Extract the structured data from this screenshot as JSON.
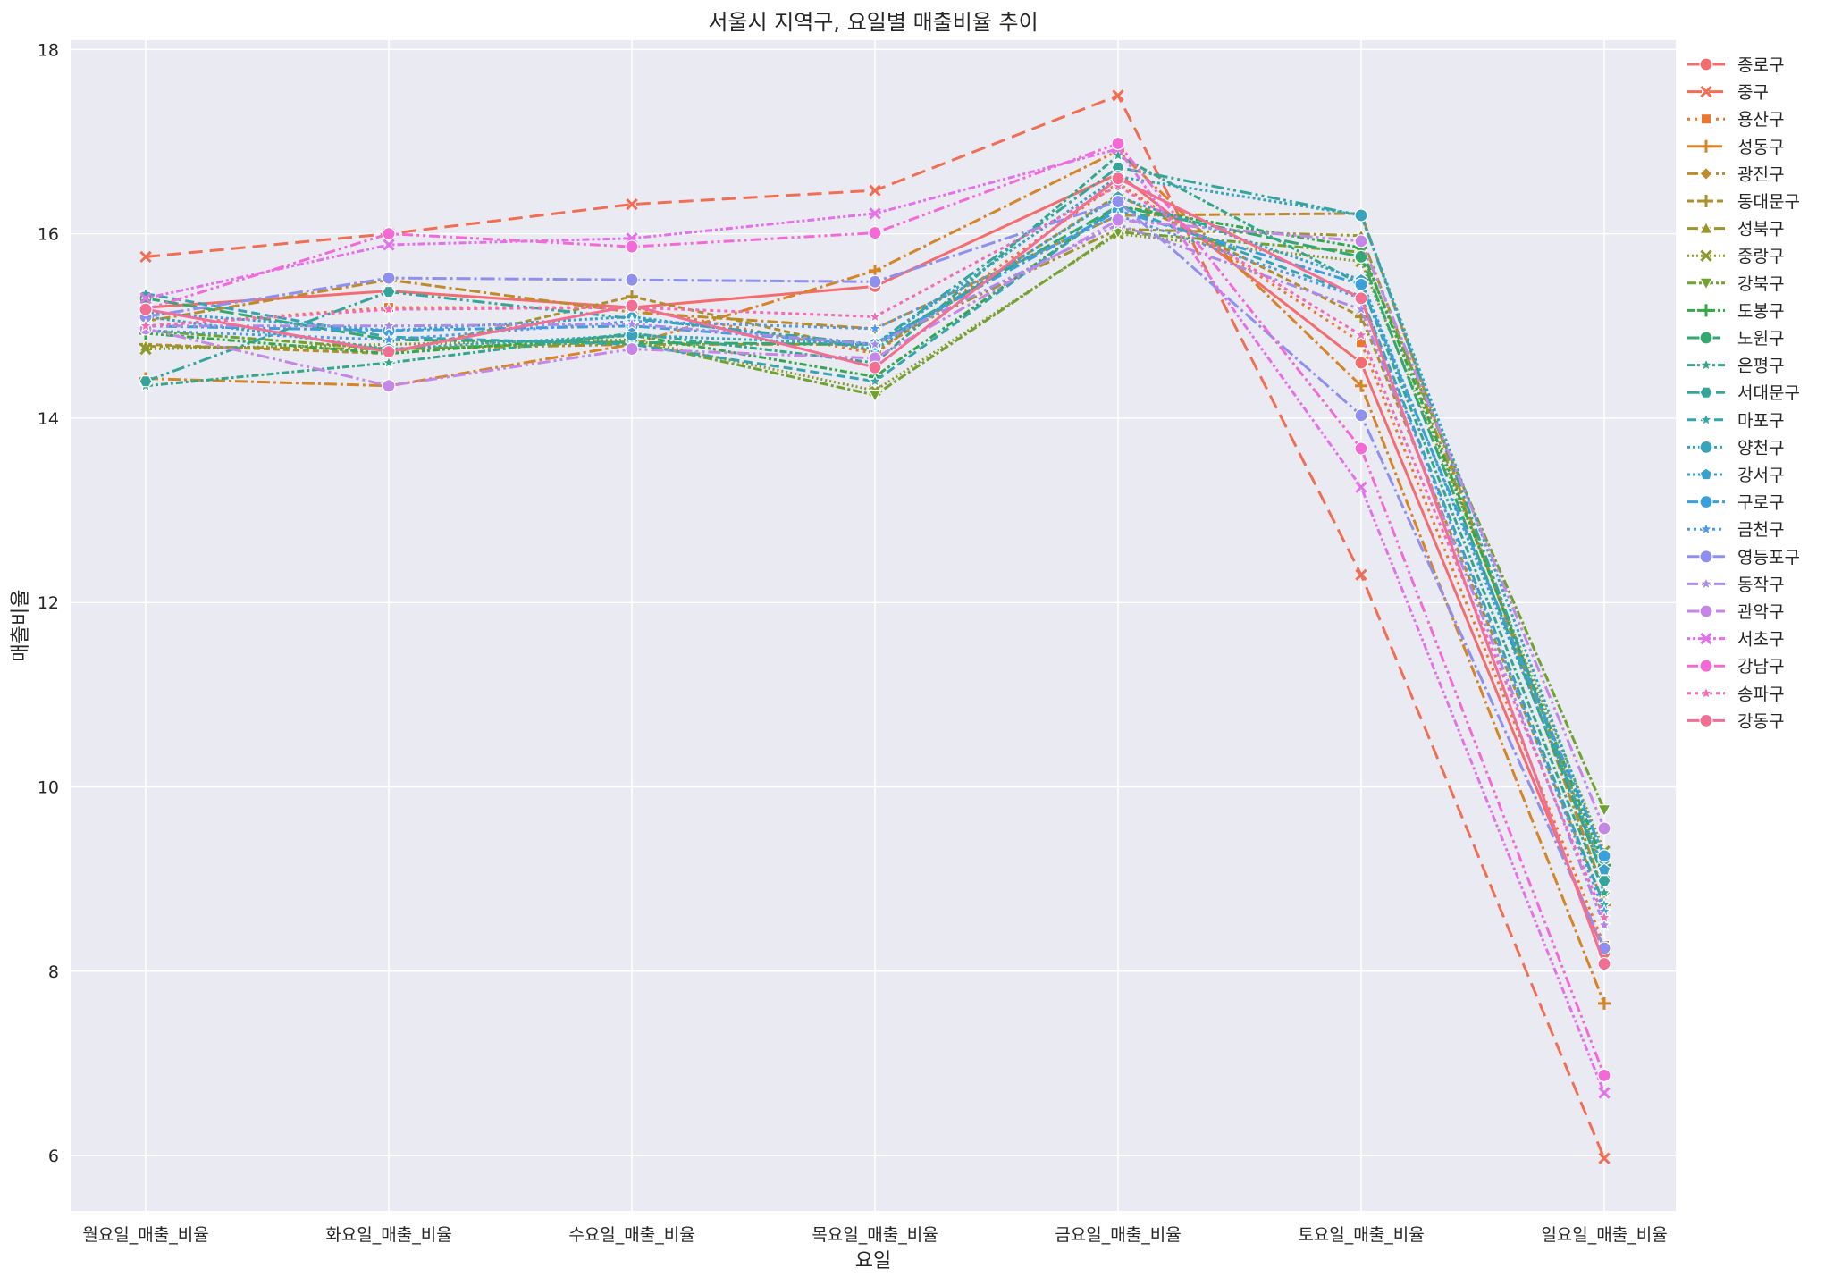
{
  "chart_data": {
    "type": "line",
    "title": "서울시 지역구, 요일별 매출비율 추이",
    "xlabel": "요일",
    "ylabel": "매출비율",
    "categories": [
      "월요일_매출_비율",
      "화요일_매출_비율",
      "수요일_매출_비율",
      "목요일_매출_비율",
      "금요일_매출_비율",
      "토요일_매출_비율",
      "일요일_매출_비율"
    ],
    "ylim": [
      5.4,
      18.1
    ],
    "yticks": [
      6,
      8,
      10,
      12,
      14,
      16,
      18
    ],
    "grid": true,
    "legend": "upper-right-outside",
    "series": [
      {
        "name": "종로구",
        "color": "#f36d6e",
        "marker": "circle",
        "dash": "",
        "values": [
          15.2,
          15.38,
          15.2,
          15.43,
          16.65,
          14.6,
          8.2
        ]
      },
      {
        "name": "중구",
        "color": "#f06e54",
        "marker": "x",
        "dash": "16,8",
        "values": [
          15.75,
          16.0,
          16.32,
          16.47,
          17.5,
          12.3,
          5.97
        ]
      },
      {
        "name": "용산구",
        "color": "#e9772e",
        "marker": "square",
        "dash": "3,5",
        "values": [
          15.0,
          15.2,
          15.2,
          14.7,
          16.55,
          14.82,
          8.28
        ]
      },
      {
        "name": "성동구",
        "color": "#d58527",
        "marker": "plus",
        "dash": "14,4,3,4",
        "values": [
          14.43,
          14.35,
          14.8,
          15.6,
          16.9,
          14.35,
          7.65
        ]
      },
      {
        "name": "광진구",
        "color": "#bf8b29",
        "marker": "diamond",
        "dash": "12,4,12,4,3,4",
        "values": [
          15.05,
          15.5,
          15.15,
          14.97,
          16.2,
          16.22,
          8.85
        ]
      },
      {
        "name": "동대문구",
        "color": "#ae8f2b",
        "marker": "plus",
        "dash": "7,4",
        "values": [
          14.8,
          14.7,
          15.32,
          14.72,
          16.42,
          15.1,
          8.72
        ]
      },
      {
        "name": "성북구",
        "color": "#9e942c",
        "marker": "triangle-up",
        "dash": "12,4,3,4,3,4",
        "values": [
          14.78,
          14.75,
          14.8,
          14.8,
          16.05,
          15.98,
          9.05
        ]
      },
      {
        "name": "중랑구",
        "color": "#8b9a2d",
        "marker": "x",
        "dash": "2,3",
        "values": [
          14.75,
          14.8,
          14.85,
          14.3,
          16.0,
          15.7,
          9.3
        ]
      },
      {
        "name": "강북구",
        "color": "#6fa22e",
        "marker": "triangle-down",
        "dash": "10,3,3,3",
        "values": [
          14.95,
          14.75,
          14.83,
          14.25,
          16.02,
          15.8,
          9.75
        ]
      },
      {
        "name": "도봉구",
        "color": "#32a84a",
        "marker": "plus",
        "dash": "8,3,3,3,3,3",
        "values": [
          14.92,
          14.7,
          14.9,
          14.45,
          16.3,
          15.85,
          9.15
        ]
      },
      {
        "name": "노원구",
        "color": "#33a870",
        "marker": "circle",
        "dash": "16,5",
        "values": [
          15.3,
          14.85,
          14.82,
          14.8,
          16.3,
          15.75,
          9.0
        ]
      },
      {
        "name": "은평구",
        "color": "#34a78a",
        "marker": "star",
        "dash": "8,3,3,3",
        "values": [
          14.35,
          14.6,
          14.92,
          14.6,
          16.85,
          15.45,
          8.85
        ]
      },
      {
        "name": "서대문구",
        "color": "#35a59c",
        "marker": "hexagon",
        "dash": "14,4,3,4,3,4",
        "values": [
          14.4,
          15.37,
          15.08,
          14.8,
          16.72,
          16.2,
          8.98
        ]
      },
      {
        "name": "마포구",
        "color": "#36a4ad",
        "marker": "star",
        "dash": "10,5",
        "values": [
          15.35,
          14.88,
          14.8,
          14.4,
          16.3,
          15.32,
          8.72
        ]
      },
      {
        "name": "양천구",
        "color": "#37a3bc",
        "marker": "circle",
        "dash": "3,3",
        "values": [
          15.1,
          14.75,
          14.9,
          14.8,
          16.62,
          16.2,
          9.22
        ]
      },
      {
        "name": "강서구",
        "color": "#38a1cb",
        "marker": "pentagon",
        "dash": "3,3",
        "values": [
          15.15,
          14.95,
          15.1,
          14.75,
          16.4,
          15.5,
          9.1
        ]
      },
      {
        "name": "구로구",
        "color": "#3a9fdb",
        "marker": "circle",
        "dash": "12,4,3,4",
        "values": [
          15.0,
          14.95,
          15.0,
          14.8,
          16.25,
          15.45,
          9.25
        ]
      },
      {
        "name": "금천구",
        "color": "#4e99eb",
        "marker": "star",
        "dash": "3,4",
        "values": [
          14.95,
          14.85,
          15.05,
          14.97,
          16.2,
          15.3,
          8.65
        ]
      },
      {
        "name": "영등포구",
        "color": "#8f90ee",
        "marker": "circle",
        "dash": "16,4,3,4",
        "values": [
          15.1,
          15.52,
          15.5,
          15.48,
          16.35,
          14.03,
          8.25
        ]
      },
      {
        "name": "동작구",
        "color": "#a98ae9",
        "marker": "star",
        "dash": "12,4,3,4,3,4",
        "values": [
          15.0,
          15.0,
          15.02,
          14.8,
          16.1,
          15.18,
          8.5
        ]
      },
      {
        "name": "관악구",
        "color": "#c486e7",
        "marker": "circle",
        "dash": "14,4,3,4,3,4",
        "values": [
          14.97,
          14.35,
          14.75,
          14.65,
          16.15,
          15.92,
          9.55
        ]
      },
      {
        "name": "서초구",
        "color": "#e371e9",
        "marker": "x",
        "dash": "3,3,3,3,8,3",
        "values": [
          15.3,
          15.88,
          15.95,
          16.22,
          16.92,
          13.25,
          6.68
        ]
      },
      {
        "name": "강남구",
        "color": "#f36ad7",
        "marker": "circle",
        "dash": "12,4,3,4,3,4",
        "values": [
          15.18,
          16.0,
          15.86,
          16.01,
          16.98,
          13.67,
          6.87
        ]
      },
      {
        "name": "송파구",
        "color": "#f26cb5",
        "marker": "star",
        "dash": "4,4",
        "values": [
          15.0,
          15.18,
          15.2,
          15.1,
          16.52,
          14.9,
          8.58
        ]
      },
      {
        "name": "강동구",
        "color": "#f26e93",
        "marker": "circle",
        "dash": "",
        "values": [
          15.18,
          14.72,
          15.22,
          14.55,
          16.6,
          15.3,
          8.08
        ]
      }
    ]
  }
}
